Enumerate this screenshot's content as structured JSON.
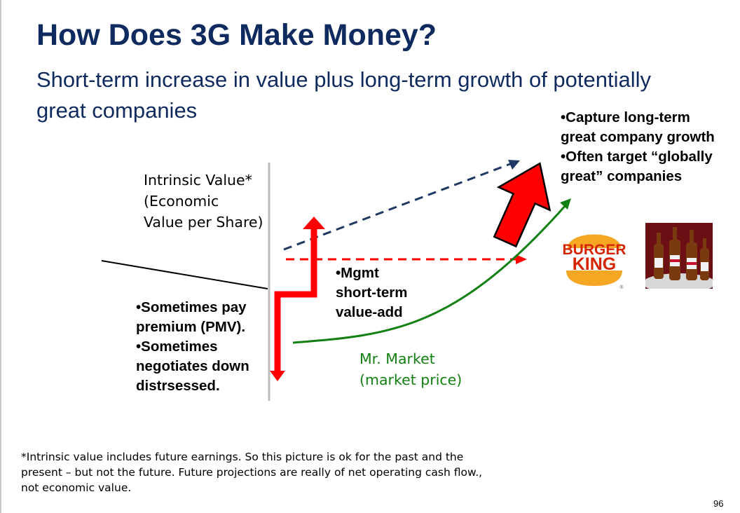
{
  "title": "How Does 3G Make Money?",
  "subtitle": "Short-term increase in value plus long-term growth of potentially great companies",
  "intrinsic_label": [
    "Intrinsic Value*",
    "(Economic",
    "Value per Share)"
  ],
  "left_bullets": [
    "•Sometimes pay",
    "premium (PMV).",
    "•Sometimes",
    "negotiates down",
    "distrsessed."
  ],
  "mgmt_bullets": [
    "•Mgmt",
    "short-term",
    "value-add"
  ],
  "market_label": [
    "Mr. Market",
    "(market price)"
  ],
  "right_bullets": [
    "•Capture long-term",
    "great company growth",
    "•Often target “globally",
    "great” companies"
  ],
  "logos": {
    "burger_king": [
      "BURGER",
      "KING"
    ]
  },
  "footnote": "*Intrinsic value includes future earnings. So this picture is ok for the past and the present – but not the future. Future projections are really of net operating cash flow., not economic value.",
  "page_number": "96",
  "colors": {
    "title": "#0e2a5e",
    "arrow_red": "#ff0000",
    "dash_navy": "#1f3864",
    "market_green": "#138013"
  }
}
